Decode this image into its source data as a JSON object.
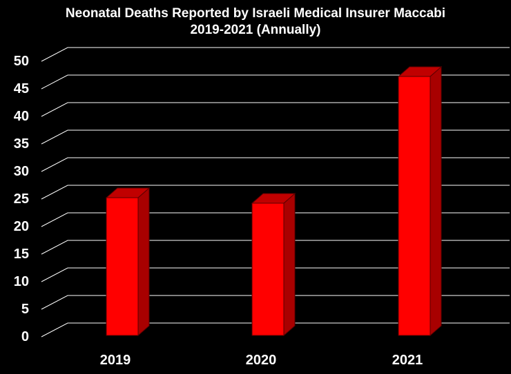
{
  "chart_data": {
    "type": "bar",
    "title": "Neonatal Deaths Reported by Israeli Medical Insurer Maccabi",
    "subtitle": "2019-2021 (Annually)",
    "categories": [
      "2019",
      "2020",
      "2021"
    ],
    "values": [
      25,
      24,
      47
    ],
    "ylim": [
      0,
      50
    ],
    "yticks": [
      0,
      5,
      10,
      15,
      20,
      25,
      30,
      35,
      40,
      45,
      50
    ],
    "xlabel": "",
    "ylabel": "",
    "grid": true,
    "legend": "none",
    "style": "3d-column",
    "colors": {
      "background": "#000000",
      "bar_front": "#ff0000",
      "bar_top": "#c00000",
      "bar_side": "#a80000",
      "bar_edge": "#5a0000",
      "gridline": "#ffffff",
      "text": "#ffffff"
    }
  }
}
